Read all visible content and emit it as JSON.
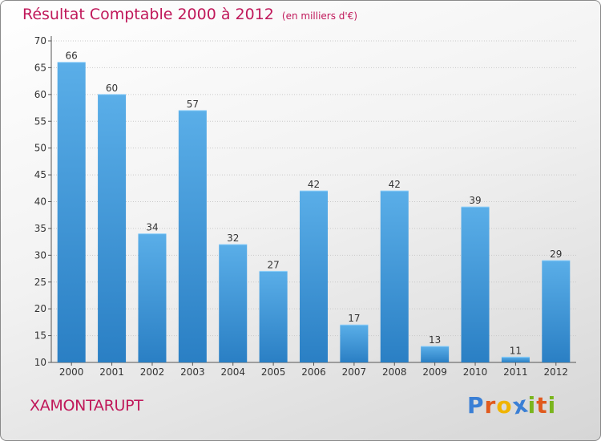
{
  "title": "Résultat Comptable 2000 à 2012",
  "subtitle": "(en milliers d'€)",
  "city": "XAMONTARUPT",
  "logo": {
    "letters": [
      {
        "char": "P",
        "color": "#3a7fd5"
      },
      {
        "char": "r",
        "color": "#e05a1e"
      },
      {
        "char": "o",
        "color": "#f0b400"
      },
      {
        "char": "x",
        "color": "#3a7fd5"
      },
      {
        "char": "i",
        "color": "#7ab51d"
      },
      {
        "char": "t",
        "color": "#e05a1e"
      },
      {
        "char": "i",
        "color": "#7ab51d"
      }
    ]
  },
  "colors": {
    "bar_top": "#5aaee8",
    "bar_bottom": "#2a7fc4",
    "title": "#c0185a"
  },
  "chart_data": {
    "type": "bar",
    "title": "Résultat Comptable 2000 à 2012",
    "subtitle": "(en milliers d'€)",
    "categories": [
      "2000",
      "2001",
      "2002",
      "2003",
      "2004",
      "2005",
      "2006",
      "2007",
      "2008",
      "2009",
      "2010",
      "2011",
      "2012"
    ],
    "values": [
      66,
      60,
      34,
      57,
      32,
      27,
      42,
      17,
      42,
      13,
      39,
      11,
      29
    ],
    "ylim": [
      10,
      70
    ],
    "yticks": [
      10,
      15,
      20,
      25,
      30,
      35,
      40,
      45,
      50,
      55,
      60,
      65,
      70
    ],
    "grid": "horizontal",
    "xlabel": "",
    "ylabel": ""
  }
}
